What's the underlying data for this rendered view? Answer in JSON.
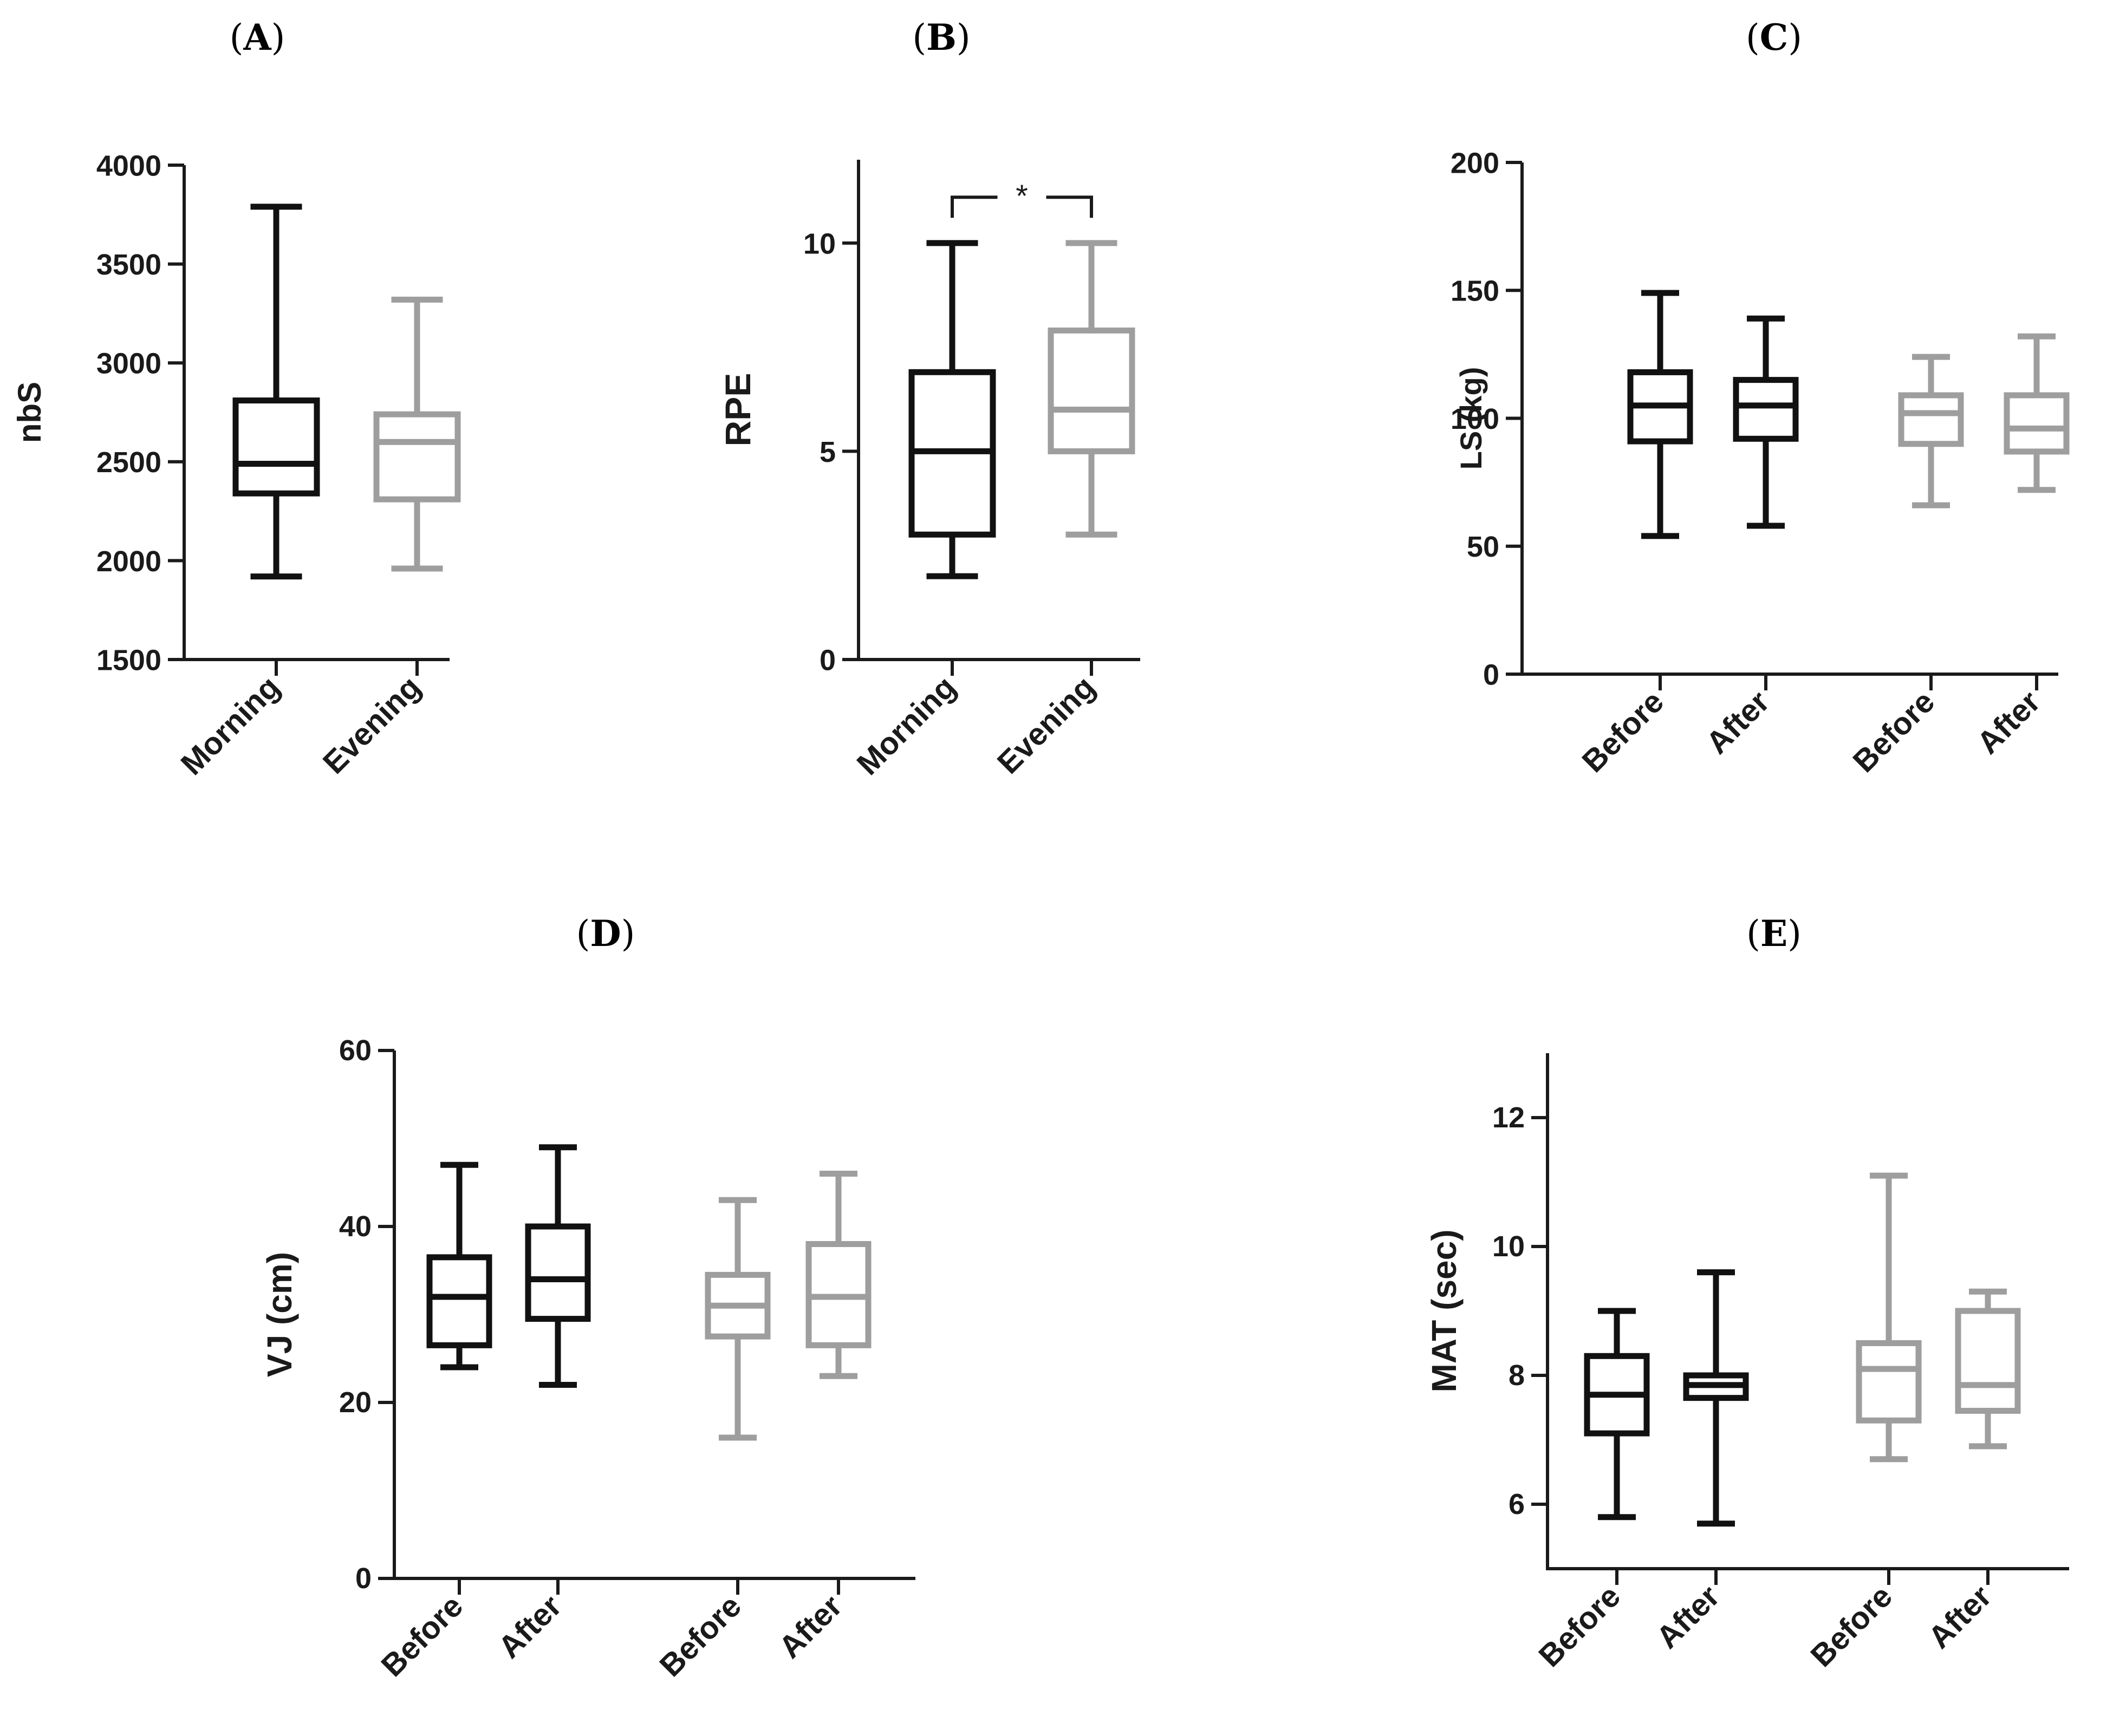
{
  "colors": {
    "black": "#111111",
    "gray": "#9e9e9e",
    "axis": "#1a1a1a"
  },
  "chart_data": [
    {
      "type": "box",
      "panel": "A",
      "title": "",
      "ylabel": "nbS",
      "ylim": [
        1500,
        4000
      ],
      "yticks": [
        1500,
        2000,
        2500,
        3000,
        3500,
        4000
      ],
      "categories": [
        "Morning",
        "Evening"
      ],
      "boxes": [
        {
          "category": "Morning",
          "color": "black",
          "min": 1920,
          "q1": 2340,
          "median": 2490,
          "q3": 2810,
          "max": 3790
        },
        {
          "category": "Evening",
          "color": "gray",
          "min": 1960,
          "q1": 2310,
          "median": 2600,
          "q3": 2740,
          "max": 3320
        }
      ]
    },
    {
      "type": "box",
      "panel": "B",
      "title": "",
      "ylabel": "RPE",
      "ylim": [
        0,
        12
      ],
      "yticks": [
        0,
        5,
        10
      ],
      "categories": [
        "Morning",
        "Evening"
      ],
      "boxes": [
        {
          "category": "Morning",
          "color": "black",
          "min": 2,
          "q1": 3,
          "median": 5,
          "q3": 6.9,
          "max": 10
        },
        {
          "category": "Evening",
          "color": "gray",
          "min": 3,
          "q1": 5,
          "median": 6,
          "q3": 7.9,
          "max": 10
        }
      ],
      "annotations": [
        {
          "text": "*",
          "between": [
            "Morning",
            "Evening"
          ],
          "y": 11.1
        }
      ]
    },
    {
      "type": "box",
      "panel": "C",
      "title": "",
      "ylabel": "LS (kg)",
      "ylim": [
        0,
        200
      ],
      "yticks": [
        0,
        50,
        100,
        150,
        200
      ],
      "categories": [
        "Before",
        "After",
        "Before",
        "After"
      ],
      "boxes": [
        {
          "category": "Before",
          "color": "black",
          "min": 54,
          "q1": 91,
          "median": 105,
          "q3": 118,
          "max": 149
        },
        {
          "category": "After",
          "color": "black",
          "min": 58,
          "q1": 92,
          "median": 105,
          "q3": 115,
          "max": 139
        },
        {
          "category": "Before",
          "color": "gray",
          "min": 66,
          "q1": 90,
          "median": 102,
          "q3": 109,
          "max": 124
        },
        {
          "category": "After",
          "color": "gray",
          "min": 72,
          "q1": 87,
          "median": 96,
          "q3": 109,
          "max": 132
        }
      ]
    },
    {
      "type": "box",
      "panel": "D",
      "title": "",
      "ylabel": "VJ (cm)",
      "ylim": [
        0,
        60
      ],
      "yticks": [
        0,
        20,
        40,
        60
      ],
      "categories": [
        "Before",
        "After",
        "Before",
        "After"
      ],
      "boxes": [
        {
          "category": "Before",
          "color": "black",
          "min": 24,
          "q1": 26.5,
          "median": 32,
          "q3": 36.5,
          "max": 47
        },
        {
          "category": "After",
          "color": "black",
          "min": 22,
          "q1": 29.5,
          "median": 34,
          "q3": 40,
          "max": 49
        },
        {
          "category": "Before",
          "color": "gray",
          "min": 16,
          "q1": 27.5,
          "median": 31,
          "q3": 34.5,
          "max": 43
        },
        {
          "category": "After",
          "color": "gray",
          "min": 23,
          "q1": 26.5,
          "median": 32,
          "q3": 38,
          "max": 46
        }
      ]
    },
    {
      "type": "box",
      "panel": "E",
      "title": "",
      "ylabel": "MAT (sec)",
      "ylim": [
        5,
        13
      ],
      "yticks": [
        6,
        8,
        10,
        12
      ],
      "categories": [
        "Before",
        "After",
        "Before",
        "After"
      ],
      "boxes": [
        {
          "category": "Before",
          "color": "black",
          "min": 5.8,
          "q1": 7.1,
          "median": 7.7,
          "q3": 8.3,
          "max": 9.0
        },
        {
          "category": "After",
          "color": "black",
          "min": 5.7,
          "q1": 7.65,
          "median": 7.85,
          "q3": 8.0,
          "max": 9.6
        },
        {
          "category": "Before",
          "color": "gray",
          "min": 6.7,
          "q1": 7.3,
          "median": 8.1,
          "q3": 8.5,
          "max": 11.1
        },
        {
          "category": "After",
          "color": "gray",
          "min": 6.9,
          "q1": 7.45,
          "median": 7.85,
          "q3": 9.0,
          "max": 9.3
        }
      ]
    }
  ]
}
